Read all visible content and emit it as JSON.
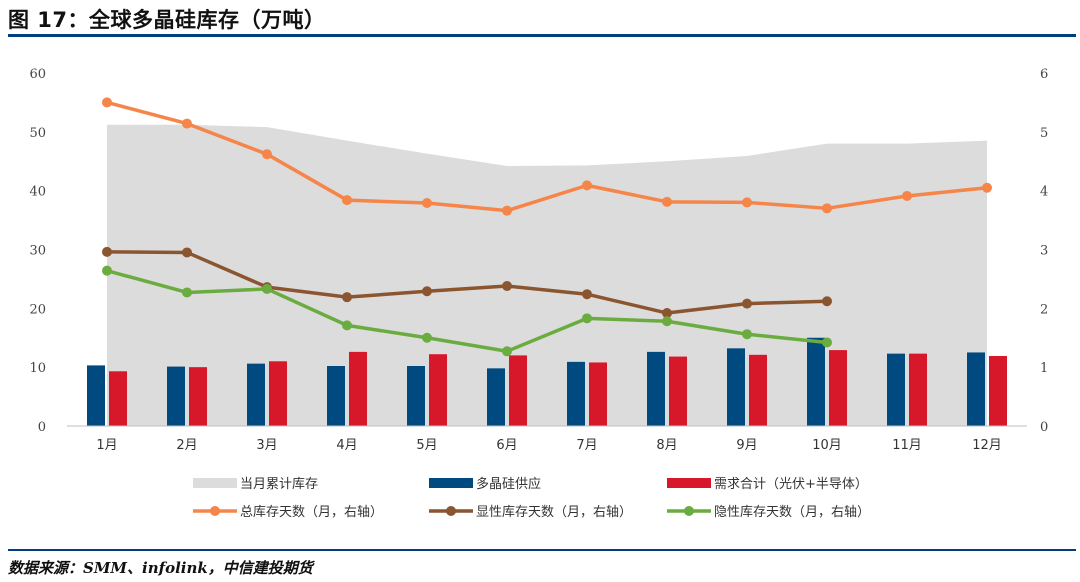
{
  "header": {
    "title": "图 17：全球多晶硅库存（万吨）"
  },
  "footer": {
    "source": "数据来源：SMM、infolink，中信建投期货"
  },
  "chart_data": {
    "type": "bar",
    "categories": [
      "1月",
      "2月",
      "3月",
      "4月",
      "5月",
      "6月",
      "7月",
      "8月",
      "9月",
      "10月",
      "11月",
      "12月"
    ],
    "ylim": [
      0,
      60
    ],
    "y2lim": [
      0,
      6
    ],
    "y_ticks": [
      "0",
      "10",
      "20",
      "30",
      "40",
      "50",
      "60"
    ],
    "y2_ticks": [
      "0",
      "1",
      "2",
      "3",
      "4",
      "5",
      "6"
    ],
    "series": [
      {
        "name": "当月累计库存",
        "kind": "area",
        "axis": "left",
        "color": "#dcdcdc",
        "values": [
          51.2,
          51.2,
          50.8,
          48.5,
          46.3,
          44.2,
          44.3,
          45.0,
          45.9,
          48.0,
          48.0,
          48.5
        ]
      },
      {
        "name": "多晶硅供应",
        "kind": "bar",
        "axis": "left",
        "color": "#004a7f",
        "values": [
          10.3,
          10.1,
          10.6,
          10.2,
          10.2,
          9.8,
          10.9,
          12.6,
          13.2,
          15.0,
          12.3,
          12.5
        ]
      },
      {
        "name": "需求合计（光伏+半导体）",
        "kind": "bar",
        "axis": "left",
        "color": "#d6182a",
        "values": [
          9.3,
          10.0,
          11.0,
          12.6,
          12.2,
          12.0,
          10.8,
          11.8,
          12.1,
          12.9,
          12.3,
          11.9
        ]
      },
      {
        "name": "总库存天数（月，右轴）",
        "kind": "line",
        "axis": "right",
        "color": "#f58549",
        "values": [
          5.5,
          5.14,
          4.62,
          3.84,
          3.79,
          3.66,
          4.09,
          3.81,
          3.8,
          3.7,
          3.91,
          4.05
        ]
      },
      {
        "name": "显性库存天数（月，右轴）",
        "kind": "line",
        "axis": "right",
        "color": "#8b5530",
        "values": [
          2.96,
          2.95,
          2.36,
          2.19,
          2.29,
          2.38,
          2.24,
          1.92,
          2.08,
          2.12,
          null,
          null
        ]
      },
      {
        "name": "隐性库存天数（月，右轴）",
        "kind": "line",
        "axis": "right",
        "color": "#6aac3f",
        "values": [
          2.64,
          2.27,
          2.33,
          1.71,
          1.5,
          1.27,
          1.83,
          1.78,
          1.56,
          1.42,
          null,
          null
        ]
      }
    ],
    "legend": "bottom"
  }
}
